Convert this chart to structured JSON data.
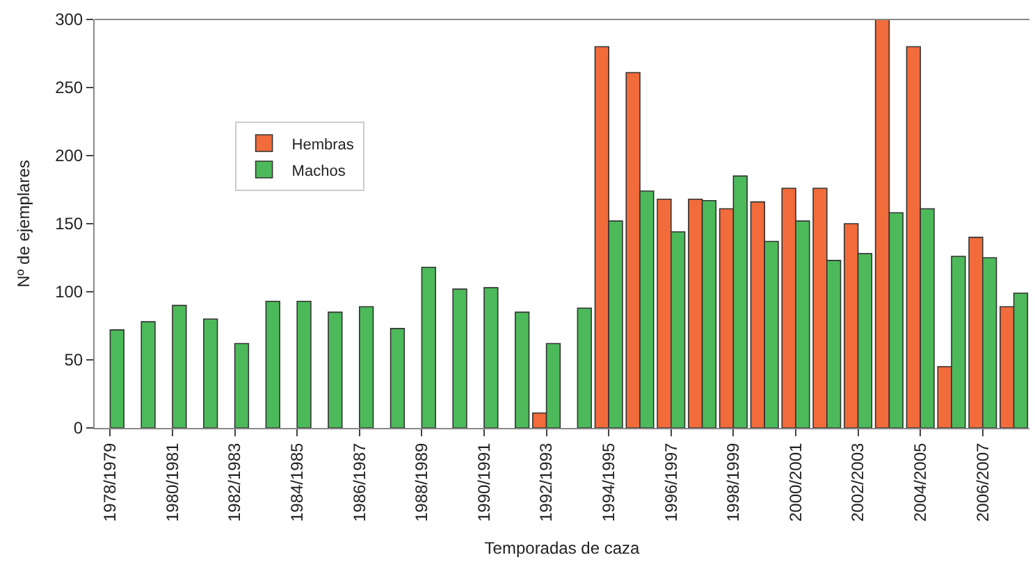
{
  "chart_data": {
    "type": "bar",
    "xlabel": "Temporadas de caza",
    "ylabel": "Nº de ejemplares",
    "categories": [
      "1978/1979",
      null,
      "1980/1981",
      null,
      "1982/1983",
      null,
      "1984/1985",
      null,
      "1986/1987",
      null,
      "1988/1989",
      null,
      "1990/1991",
      null,
      "1992/1993",
      null,
      "1994/1995",
      null,
      "1996/1997",
      null,
      "1998/1999",
      null,
      "2000/2001",
      null,
      "2002/2003",
      null,
      "2004/2005",
      null,
      "2006/2007",
      null
    ],
    "series": [
      {
        "name": "Hembras",
        "color": "#f26b3a",
        "values": [
          null,
          null,
          null,
          null,
          null,
          null,
          null,
          null,
          null,
          null,
          null,
          null,
          null,
          null,
          11,
          null,
          280,
          261,
          168,
          168,
          161,
          166,
          176,
          176,
          150,
          300,
          280,
          45,
          140,
          89
        ]
      },
      {
        "name": "Machos",
        "color": "#4cba5a",
        "values": [
          72,
          78,
          90,
          80,
          62,
          93,
          93,
          85,
          89,
          73,
          118,
          102,
          103,
          85,
          62,
          88,
          152,
          174,
          144,
          167,
          185,
          137,
          152,
          123,
          128,
          158,
          161,
          126,
          125,
          99
        ]
      }
    ],
    "ylim": [
      0,
      300
    ],
    "yticks": [
      0,
      50,
      100,
      150,
      200,
      250,
      300
    ],
    "legend": "top left"
  }
}
